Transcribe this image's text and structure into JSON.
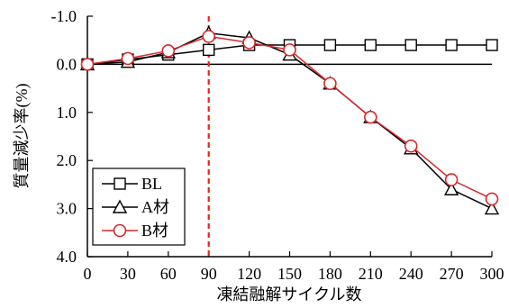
{
  "chart_data": {
    "type": "line",
    "title": "",
    "xlabel": "凍結融解サイクル数",
    "ylabel": "質量減少率(%)",
    "x": [
      0,
      30,
      60,
      90,
      120,
      150,
      180,
      210,
      240,
      270,
      300
    ],
    "x_ticks": [
      "0",
      "30",
      "60",
      "90",
      "120",
      "150",
      "180",
      "210",
      "240",
      "270",
      "300"
    ],
    "y_ticks": [
      "-1.0",
      "0.0",
      "1.0",
      "2.0",
      "3.0",
      "4.0"
    ],
    "ylim": [
      -1.0,
      4.0
    ],
    "y_inverted": true,
    "grid": false,
    "legend_position": "bottom-left",
    "reference_lines": [
      {
        "axis": "y",
        "value": 0.0,
        "style": "solid",
        "color": "#000000"
      },
      {
        "axis": "x",
        "value": 90,
        "style": "dashed",
        "color": "#e8251b"
      }
    ],
    "series": [
      {
        "name": "BL",
        "marker": "square",
        "color": "#000000",
        "values": [
          0.0,
          -0.1,
          -0.2,
          -0.3,
          -0.4,
          -0.4,
          -0.4,
          -0.4,
          -0.4,
          -0.4,
          -0.4
        ]
      },
      {
        "name": "A材",
        "marker": "triangle",
        "color": "#000000",
        "values": [
          0.0,
          -0.05,
          -0.25,
          -0.65,
          -0.55,
          -0.2,
          0.4,
          1.1,
          1.75,
          2.6,
          3.0
        ]
      },
      {
        "name": "B材",
        "marker": "circle",
        "color": "#d42a2a",
        "values": [
          0.0,
          -0.12,
          -0.28,
          -0.58,
          -0.45,
          -0.3,
          0.4,
          1.1,
          1.7,
          2.4,
          2.8
        ]
      }
    ]
  }
}
